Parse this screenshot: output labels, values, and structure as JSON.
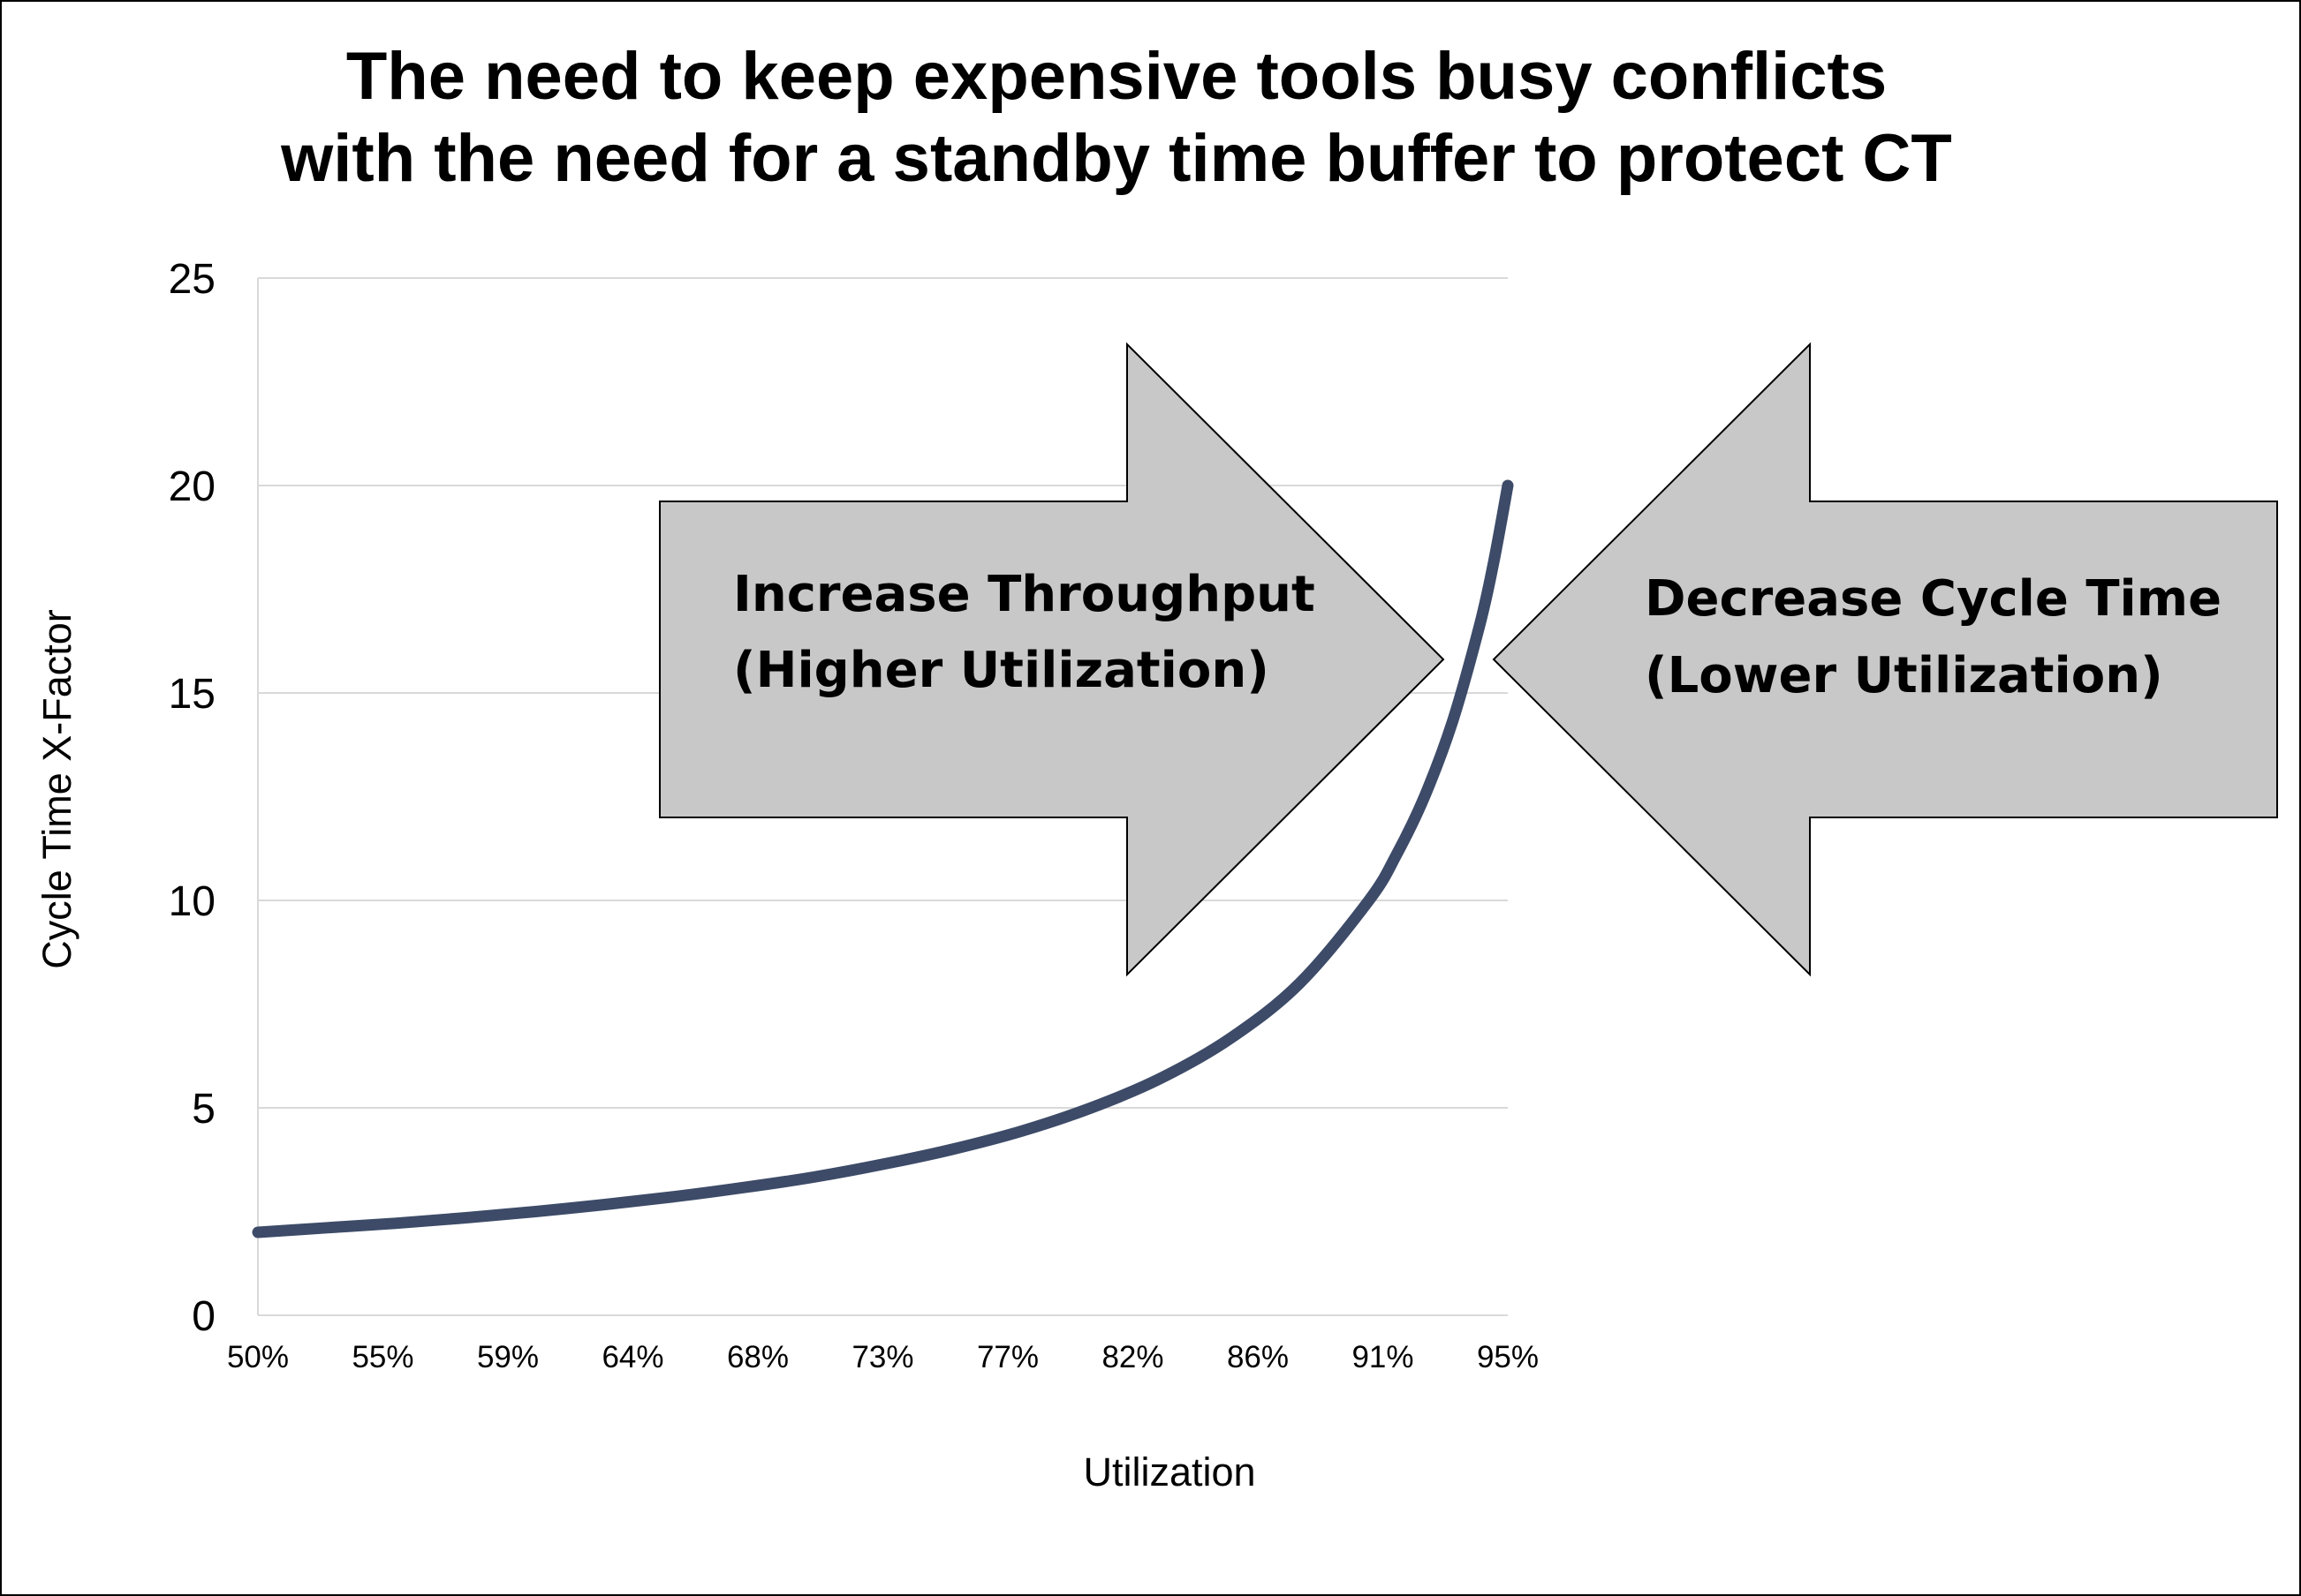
{
  "chart_data": {
    "type": "line",
    "title_lines": [
      "The need to keep expensive tools busy conflicts",
      "with the need for a standby time buffer to protect CT"
    ],
    "xlabel": "Utilization",
    "ylabel": "Cycle Time X-Factor",
    "x_tick_labels": [
      "50%",
      "55%",
      "59%",
      "64%",
      "68%",
      "73%",
      "77%",
      "82%",
      "86%",
      "91%",
      "95%"
    ],
    "y_tick_labels": [
      "0",
      "5",
      "10",
      "15",
      "20",
      "25"
    ],
    "xlim": [
      0.5,
      0.95
    ],
    "ylim": [
      0,
      25
    ],
    "grid": "horizontal",
    "series": [
      {
        "color": "#3d4b68",
        "x": [
          0.5,
          0.525,
          0.55,
          0.575,
          0.6,
          0.625,
          0.65,
          0.675,
          0.7,
          0.725,
          0.75,
          0.775,
          0.8,
          0.825,
          0.85,
          0.875,
          0.9,
          0.91,
          0.92,
          0.93,
          0.94,
          0.945,
          0.95
        ],
        "y": [
          2.0,
          2.11,
          2.22,
          2.35,
          2.5,
          2.67,
          2.86,
          3.08,
          3.33,
          3.64,
          4.0,
          4.44,
          5.0,
          5.71,
          6.67,
          8.0,
          10.0,
          11.11,
          12.5,
          14.29,
          16.67,
          18.18,
          20.0
        ]
      }
    ],
    "annotations": [
      {
        "direction": "right",
        "lines": [
          "Increase Throughput",
          "(Higher Utilization)"
        ],
        "fill": "#c8c8c8"
      },
      {
        "direction": "left",
        "lines": [
          "Decrease Cycle Time",
          "(Lower Utilization)"
        ],
        "fill": "#c8c8c8"
      }
    ]
  }
}
